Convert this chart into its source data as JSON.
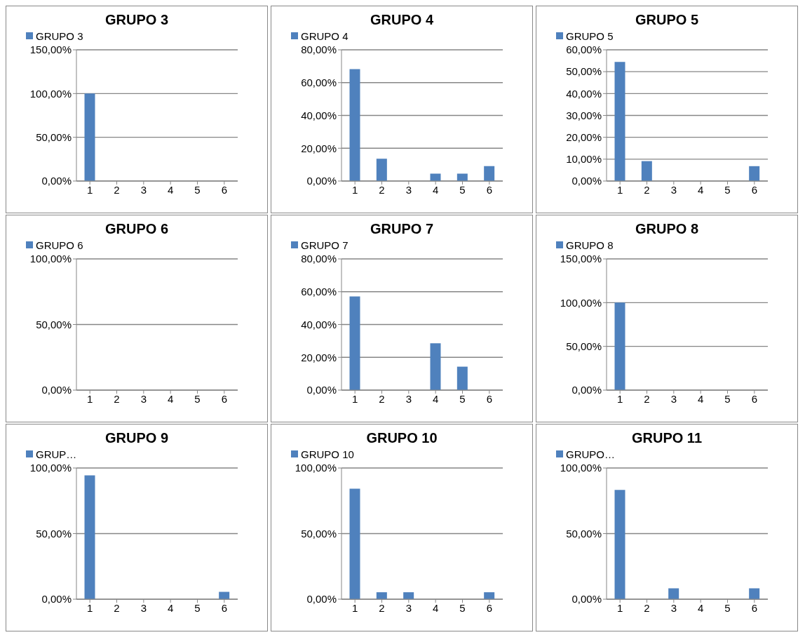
{
  "chart_data": [
    {
      "type": "bar",
      "title": "GRUPO 3",
      "categories": [
        "1",
        "2",
        "3",
        "4",
        "5",
        "6"
      ],
      "series": [
        {
          "name": "GRUPO 3",
          "color": "#4f81bd",
          "values": [
            100,
            0,
            0,
            0,
            0,
            0
          ]
        }
      ],
      "ylim": [
        0,
        150
      ],
      "yticks": [
        {
          "value": 0,
          "label": "0,00%"
        },
        {
          "value": 50,
          "label": "50,00%"
        },
        {
          "value": 100,
          "label": "100,00%"
        },
        {
          "value": 150,
          "label": "150,00%"
        }
      ],
      "grid": "y",
      "legend": "top left"
    },
    {
      "type": "bar",
      "title": "GRUPO 4",
      "categories": [
        "1",
        "2",
        "3",
        "4",
        "5",
        "6"
      ],
      "series": [
        {
          "name": "GRUPO 4",
          "color": "#4f81bd",
          "values": [
            68.2,
            13.6,
            0,
            4.5,
            4.5,
            9.1
          ]
        }
      ],
      "ylim": [
        0,
        80
      ],
      "yticks": [
        {
          "value": 0,
          "label": "0,00%"
        },
        {
          "value": 20,
          "label": "20,00%"
        },
        {
          "value": 40,
          "label": "40,00%"
        },
        {
          "value": 60,
          "label": "60,00%"
        },
        {
          "value": 80,
          "label": "80,00%"
        }
      ],
      "grid": "y",
      "legend": "top left"
    },
    {
      "type": "bar",
      "title": "GRUPO 5",
      "categories": [
        "1",
        "2",
        "3",
        "4",
        "5",
        "6"
      ],
      "series": [
        {
          "name": "GRUPO 5",
          "color": "#4f81bd",
          "values": [
            54.5,
            9.1,
            0,
            0,
            0,
            6.8
          ]
        }
      ],
      "ylim": [
        0,
        60
      ],
      "yticks": [
        {
          "value": 0,
          "label": "0,00%"
        },
        {
          "value": 10,
          "label": "10,00%"
        },
        {
          "value": 20,
          "label": "20,00%"
        },
        {
          "value": 30,
          "label": "30,00%"
        },
        {
          "value": 40,
          "label": "40,00%"
        },
        {
          "value": 50,
          "label": "50,00%"
        },
        {
          "value": 60,
          "label": "60,00%"
        }
      ],
      "grid": "y",
      "legend": "top left"
    },
    {
      "type": "bar",
      "title": "GRUPO 6",
      "categories": [
        "1",
        "2",
        "3",
        "4",
        "5",
        "6"
      ],
      "series": [
        {
          "name": "GRUPO 6",
          "color": "#4f81bd",
          "values": [
            0,
            0,
            0,
            0,
            0,
            0
          ]
        }
      ],
      "ylim": [
        0,
        100
      ],
      "yticks": [
        {
          "value": 0,
          "label": "0,00%"
        },
        {
          "value": 50,
          "label": "50,00%"
        },
        {
          "value": 100,
          "label": "100,00%"
        }
      ],
      "grid": "y",
      "legend": "top left"
    },
    {
      "type": "bar",
      "title": "GRUPO 7",
      "categories": [
        "1",
        "2",
        "3",
        "4",
        "5",
        "6"
      ],
      "series": [
        {
          "name": "GRUPO 7",
          "color": "#4f81bd",
          "values": [
            57.1,
            0,
            0,
            28.6,
            14.3,
            0
          ]
        }
      ],
      "ylim": [
        0,
        80
      ],
      "yticks": [
        {
          "value": 0,
          "label": "0,00%"
        },
        {
          "value": 20,
          "label": "20,00%"
        },
        {
          "value": 40,
          "label": "40,00%"
        },
        {
          "value": 60,
          "label": "60,00%"
        },
        {
          "value": 80,
          "label": "80,00%"
        }
      ],
      "grid": "y",
      "legend": "top left"
    },
    {
      "type": "bar",
      "title": "GRUPO 8",
      "categories": [
        "1",
        "2",
        "3",
        "4",
        "5",
        "6"
      ],
      "series": [
        {
          "name": "GRUPO 8",
          "color": "#4f81bd",
          "values": [
            100,
            0,
            0,
            0,
            0,
            0
          ]
        }
      ],
      "ylim": [
        0,
        150
      ],
      "yticks": [
        {
          "value": 0,
          "label": "0,00%"
        },
        {
          "value": 50,
          "label": "50,00%"
        },
        {
          "value": 100,
          "label": "100,00%"
        },
        {
          "value": 150,
          "label": "150,00%"
        }
      ],
      "grid": "y",
      "legend": "top left"
    },
    {
      "type": "bar",
      "title": "GRUPO 9",
      "categories": [
        "1",
        "2",
        "3",
        "4",
        "5",
        "6"
      ],
      "series": [
        {
          "name": "GRUP…",
          "color": "#4f81bd",
          "values": [
            94.4,
            0,
            0,
            0,
            0,
            5.6
          ]
        }
      ],
      "ylim": [
        0,
        100
      ],
      "yticks": [
        {
          "value": 0,
          "label": "0,00%"
        },
        {
          "value": 50,
          "label": "50,00%"
        },
        {
          "value": 100,
          "label": "100,00%"
        }
      ],
      "grid": "y",
      "legend": "top left"
    },
    {
      "type": "bar",
      "title": "GRUPO 10",
      "categories": [
        "1",
        "2",
        "3",
        "4",
        "5",
        "6"
      ],
      "series": [
        {
          "name": "GRUPO 10",
          "color": "#4f81bd",
          "values": [
            84.2,
            5.3,
            5.3,
            0,
            0,
            5.3
          ]
        }
      ],
      "ylim": [
        0,
        100
      ],
      "yticks": [
        {
          "value": 0,
          "label": "0,00%"
        },
        {
          "value": 50,
          "label": "50,00%"
        },
        {
          "value": 100,
          "label": "100,00%"
        }
      ],
      "grid": "y",
      "legend": "top left"
    },
    {
      "type": "bar",
      "title": "GRUPO 11",
      "categories": [
        "1",
        "2",
        "3",
        "4",
        "5",
        "6"
      ],
      "series": [
        {
          "name": "GRUPO…",
          "color": "#4f81bd",
          "values": [
            83.3,
            0,
            8.3,
            0,
            0,
            8.3
          ]
        }
      ],
      "ylim": [
        0,
        100
      ],
      "yticks": [
        {
          "value": 0,
          "label": "0,00%"
        },
        {
          "value": 50,
          "label": "50,00%"
        },
        {
          "value": 100,
          "label": "100,00%"
        }
      ],
      "grid": "y",
      "legend": "top left"
    }
  ]
}
